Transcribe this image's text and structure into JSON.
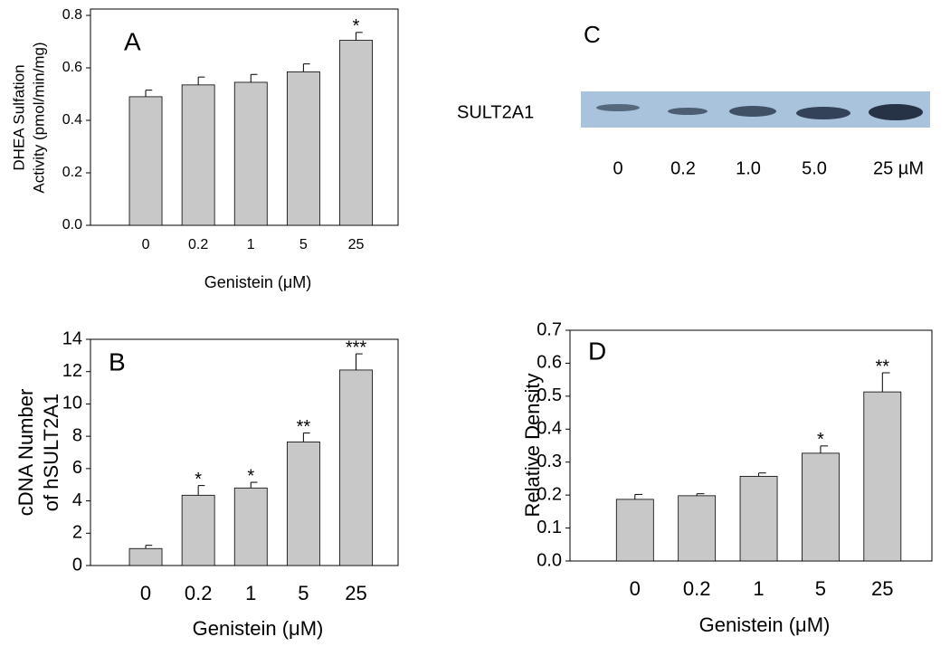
{
  "chart_data": [
    {
      "type": "bar",
      "label": "A",
      "ylabel": [
        "DHEA Sulfation",
        "Activity (pmol/min/mg)"
      ],
      "xlabel": "Genistein (μM)",
      "categories": [
        "0",
        "0.2",
        "1",
        "5",
        "25"
      ],
      "values": [
        0.49,
        0.535,
        0.545,
        0.585,
        0.705
      ],
      "errors": [
        0.025,
        0.03,
        0.03,
        0.03,
        0.03
      ],
      "annotations": [
        null,
        null,
        null,
        null,
        "*"
      ],
      "color": "#c8c8c8",
      "ylim": [
        0,
        0.8
      ],
      "yticks": [
        {
          "value": 0,
          "label": "0.0"
        },
        0.2,
        0.4,
        0.6,
        0.8
      ]
    },
    {
      "type": "bar",
      "label": "B",
      "ylabel": [
        "cDNA Number",
        "of hSULT2A1"
      ],
      "xlabel": "Genistein (μM)",
      "categories": [
        "0",
        "0.2",
        "1",
        "5",
        "25"
      ],
      "values": [
        1.05,
        4.35,
        4.8,
        7.65,
        12.1
      ],
      "errors": [
        0.2,
        0.6,
        0.35,
        0.55,
        1.0
      ],
      "annotations": [
        null,
        "*",
        "*",
        "**",
        "***"
      ],
      "color": "#c8c8c8",
      "ylim": [
        0,
        14
      ],
      "yticks": [
        0,
        2,
        4,
        6,
        8,
        10,
        12,
        14
      ]
    },
    {
      "type": "bar",
      "label": "D",
      "ylabel": [
        "Relative Density"
      ],
      "xlabel": "Genistein (μM)",
      "categories": [
        "0",
        "0.2",
        "1",
        "5",
        "25"
      ],
      "values": [
        0.187,
        0.198,
        0.257,
        0.327,
        0.513
      ],
      "errors": [
        0.015,
        0.006,
        0.01,
        0.022,
        0.058
      ],
      "annotations": [
        null,
        null,
        null,
        "*",
        "**"
      ],
      "color": "#c8c8c8",
      "ylim": [
        0,
        0.7
      ],
      "yticks": [
        {
          "value": 0,
          "label": "0.0"
        },
        0.1,
        0.2,
        0.3,
        0.4,
        0.5,
        0.6,
        0.7
      ]
    }
  ],
  "blot": {
    "label": "C",
    "row_label": "SULT2A1",
    "lanes": [
      "0",
      "0.2",
      "1.0",
      "5.0",
      "25 µM"
    ]
  }
}
